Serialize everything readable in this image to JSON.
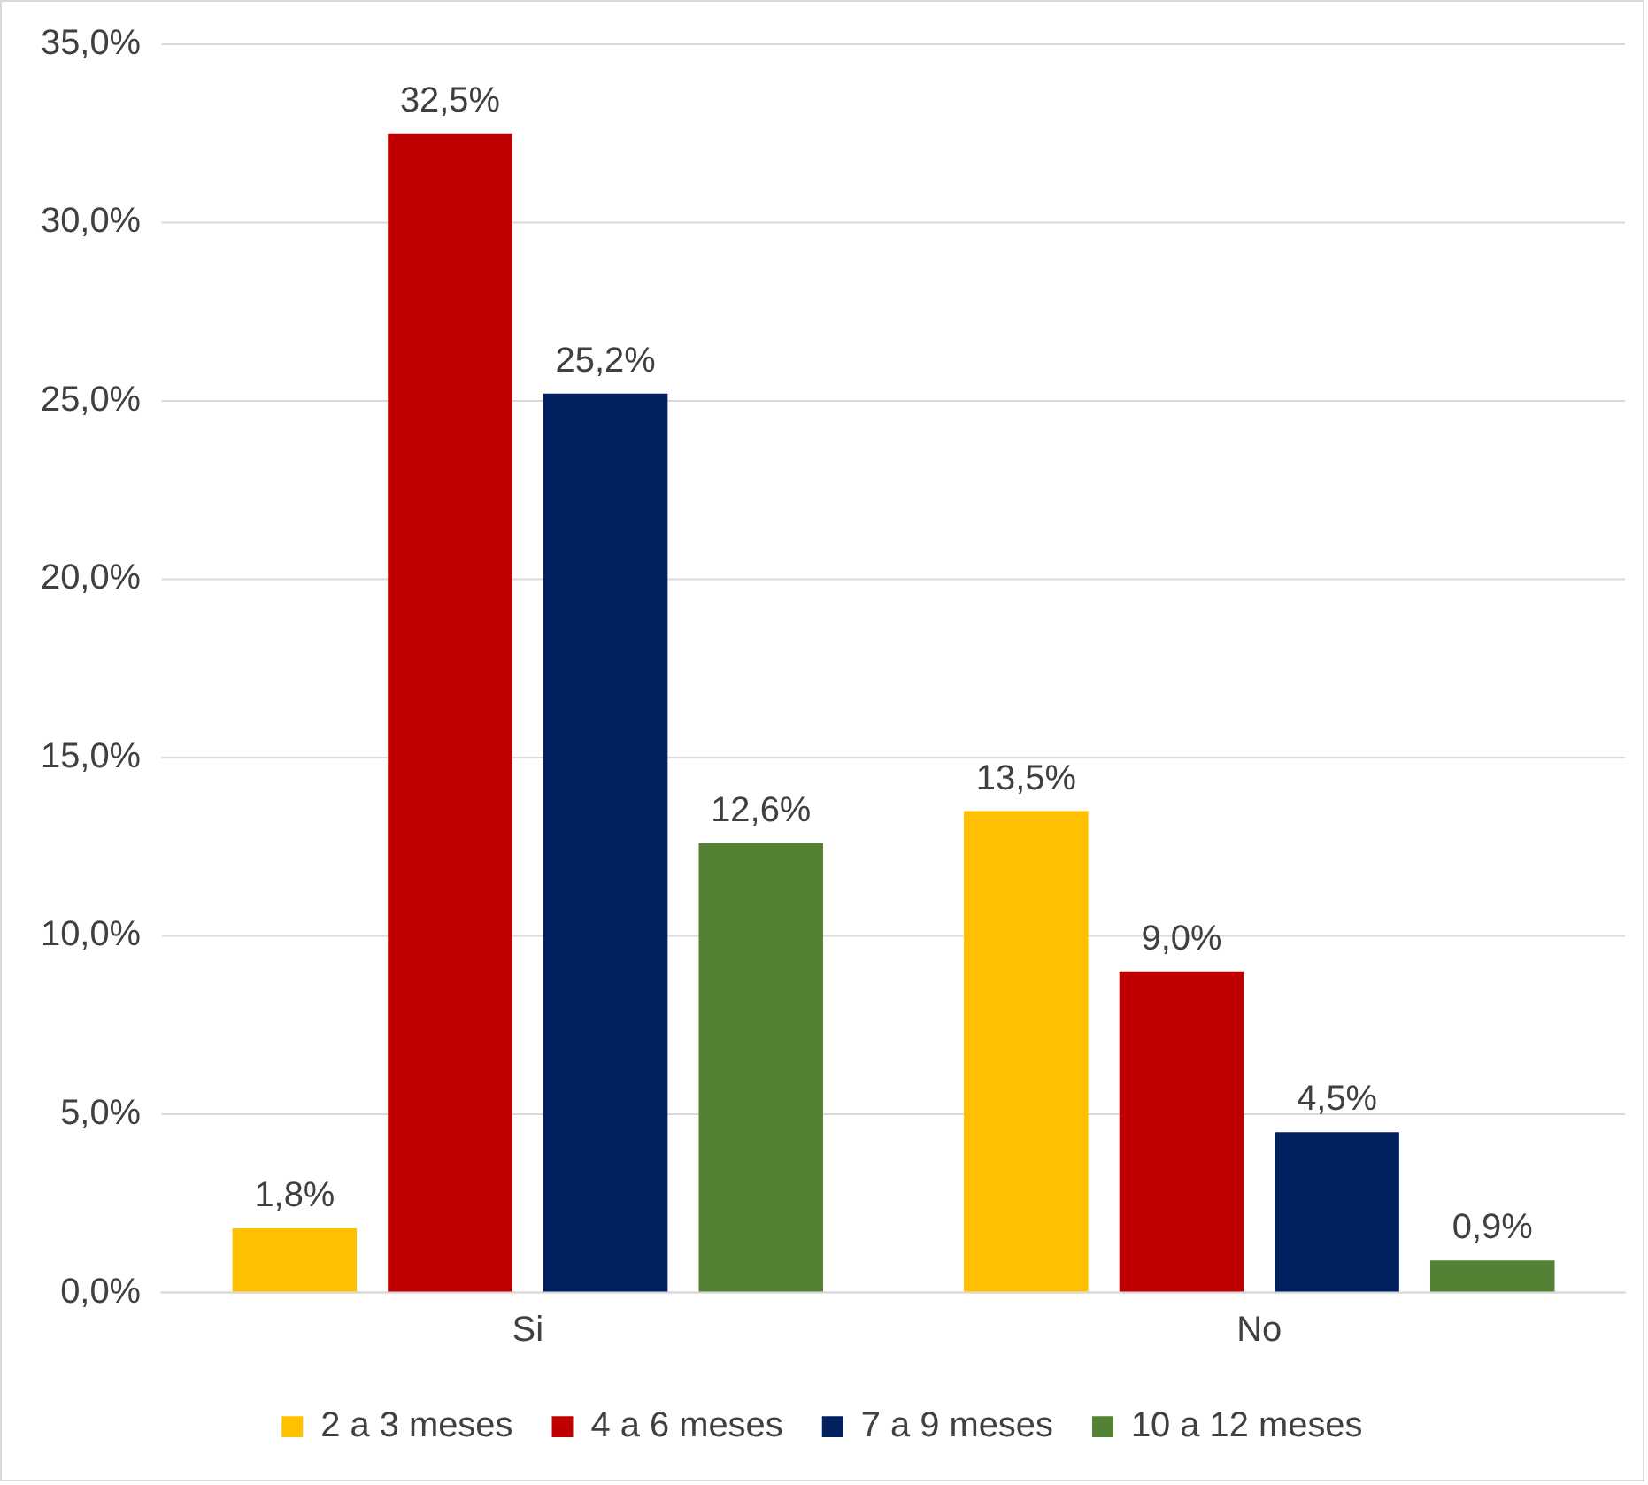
{
  "chart_data": {
    "type": "bar",
    "categories": [
      "Si",
      "No"
    ],
    "series": [
      {
        "name": "2 a 3 meses",
        "color": "#ffc000",
        "values": [
          1.8,
          13.5
        ],
        "value_labels": [
          "1,8%",
          "13,5%"
        ]
      },
      {
        "name": "4 a 6 meses",
        "color": "#c00000",
        "values": [
          32.5,
          9.0
        ],
        "value_labels": [
          "32,5%",
          "9,0%"
        ]
      },
      {
        "name": "7 a 9 meses",
        "color": "#002060",
        "values": [
          25.2,
          4.5
        ],
        "value_labels": [
          "25,2%",
          "4,5%"
        ]
      },
      {
        "name": "10 a 12 meses",
        "color": "#548235",
        "values": [
          12.6,
          0.9
        ],
        "value_labels": [
          "12,6%",
          "0,9%"
        ]
      }
    ],
    "ylim": [
      0,
      35
    ],
    "yticks": [
      {
        "value": 0,
        "label": "0,0%"
      },
      {
        "value": 5,
        "label": "5,0%"
      },
      {
        "value": 10,
        "label": "10,0%"
      },
      {
        "value": 15,
        "label": "15,0%"
      },
      {
        "value": 20,
        "label": "20,0%"
      },
      {
        "value": 25,
        "label": "25,0%"
      },
      {
        "value": 30,
        "label": "30,0%"
      },
      {
        "value": 35,
        "label": "35,0%"
      }
    ],
    "grid": "y",
    "legend": "bottom"
  }
}
